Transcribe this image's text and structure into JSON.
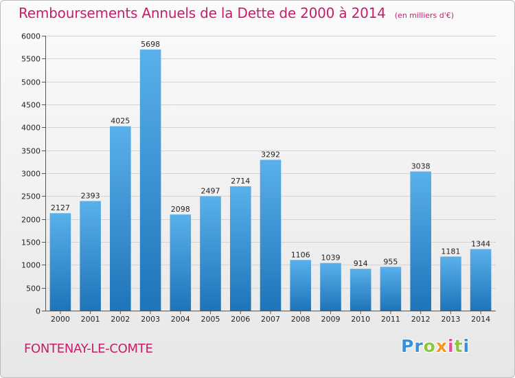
{
  "header": {
    "title": "Remboursements Annuels de la Dette de 2000 à 2014",
    "subtitle": "(en milliers d'€)"
  },
  "footer": {
    "commune": "FONTENAY-LE-COMTE",
    "brand_letters": [
      {
        "char": "P",
        "color": "#3a8fd8"
      },
      {
        "char": "r",
        "color": "#3a8fd8"
      },
      {
        "char": "o",
        "color": "#8cc63f"
      },
      {
        "char": "x",
        "color": "#f7941d"
      },
      {
        "char": "i",
        "color": "#e94e9a"
      },
      {
        "char": "t",
        "color": "#8cc63f"
      },
      {
        "char": "i",
        "color": "#3a8fd8"
      }
    ]
  },
  "colors": {
    "accent": "#c41e6b",
    "bar_top": "#5ab0ea",
    "bar_bottom": "#1f74b9",
    "grid": "#d3d3d3"
  },
  "chart_data": {
    "type": "bar",
    "title": "Remboursements Annuels de la Dette de 2000 à 2014",
    "subtitle": "(en milliers d'€)",
    "categories": [
      "2000",
      "2001",
      "2002",
      "2003",
      "2004",
      "2005",
      "2006",
      "2007",
      "2008",
      "2009",
      "2010",
      "2011",
      "2012",
      "2013",
      "2014"
    ],
    "values": [
      2127,
      2393,
      4025,
      5698,
      2098,
      2497,
      2714,
      3292,
      1106,
      1039,
      914,
      955,
      3038,
      1181,
      1344
    ],
    "ylim": [
      0,
      6000
    ],
    "yticks": [
      0,
      500,
      1000,
      1500,
      2000,
      2500,
      3000,
      3500,
      4000,
      4500,
      5000,
      5500,
      6000
    ],
    "grid": true,
    "legend": "none"
  }
}
